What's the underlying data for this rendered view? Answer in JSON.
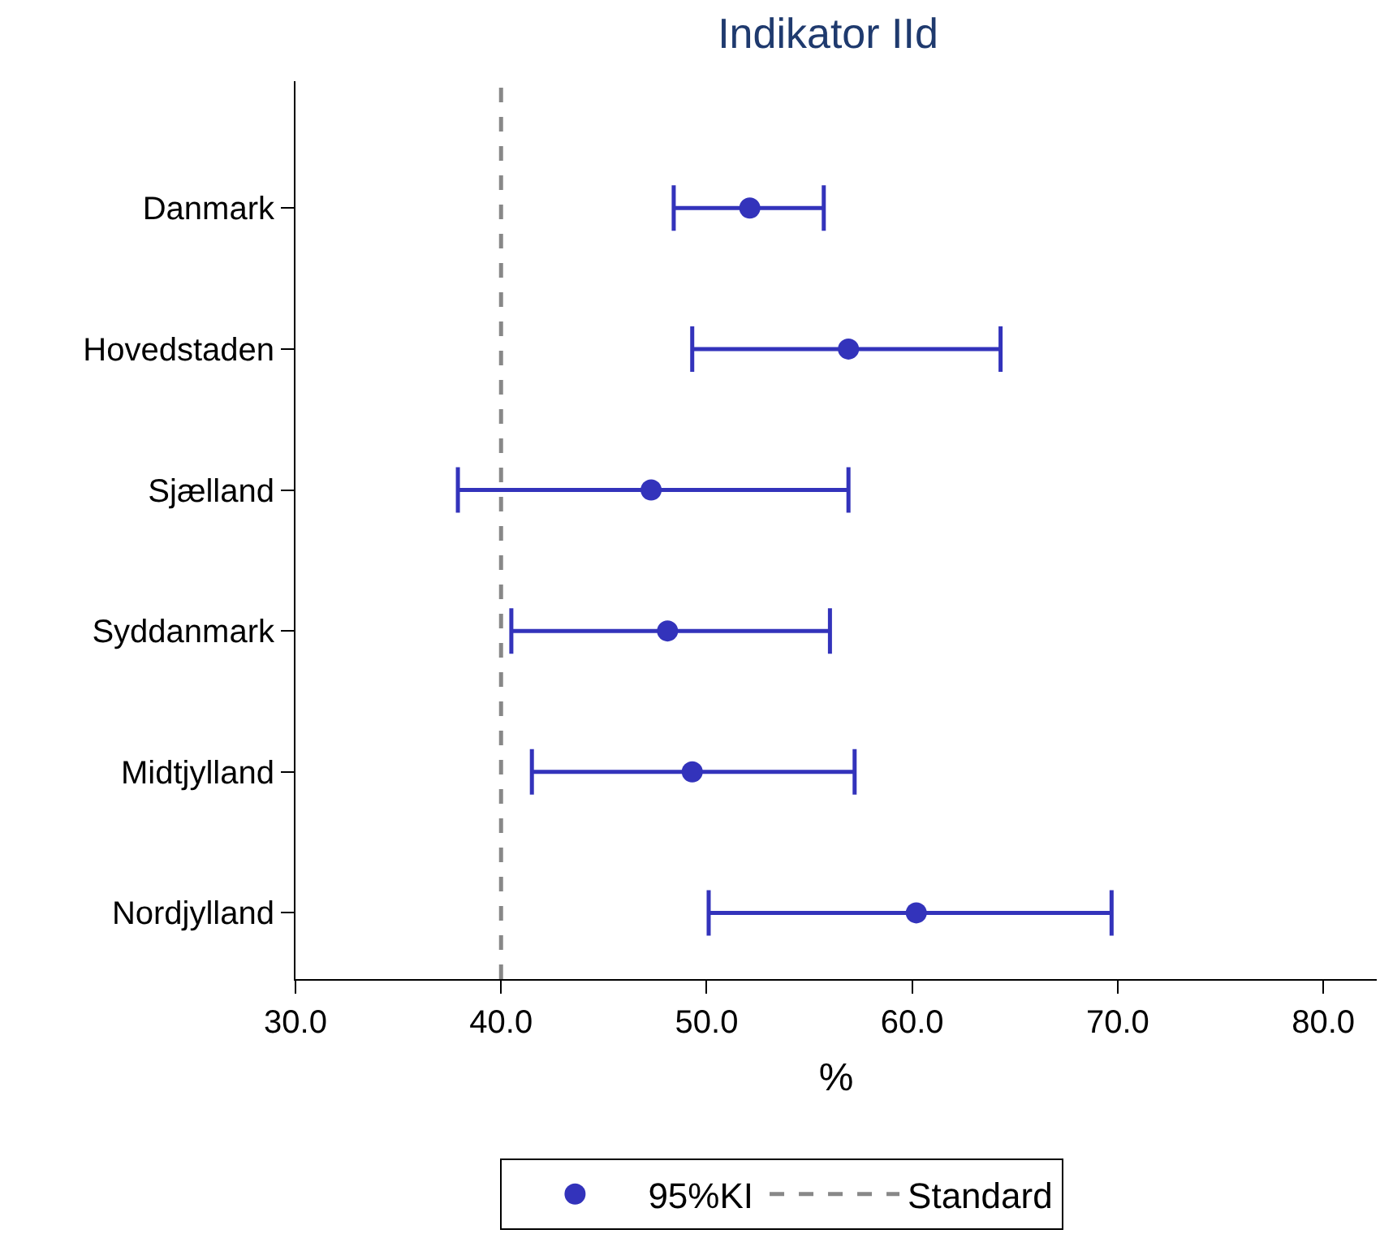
{
  "chart_data": {
    "type": "scatter",
    "title": "Indikator IId",
    "xlabel": "%",
    "categories": [
      "Danmark",
      "Hovedstaden",
      "Sjælland",
      "Syddanmark",
      "Midtjylland",
      "Nordjylland"
    ],
    "orientation": "horizontal",
    "series": [
      {
        "name": "95%KI",
        "color": "#3333bb",
        "values": [
          52.1,
          56.9,
          47.3,
          48.1,
          49.3,
          60.2
        ],
        "errors": [
          [
            48.4,
            55.7
          ],
          [
            49.3,
            64.3
          ],
          [
            37.9,
            56.9
          ],
          [
            40.5,
            56.0
          ],
          [
            41.5,
            57.2
          ],
          [
            50.1,
            69.7
          ]
        ]
      }
    ],
    "xlim": [
      30,
      82.6
    ],
    "xticks": [
      {
        "value": 30,
        "label": "30.0"
      },
      {
        "value": 40,
        "label": "40.0"
      },
      {
        "value": 50,
        "label": "50.0"
      },
      {
        "value": 60,
        "label": "60.0"
      },
      {
        "value": 70,
        "label": "70.0"
      },
      {
        "value": 80,
        "label": "80.0"
      }
    ],
    "ref_lines": [
      {
        "axis": "x",
        "value": 40,
        "label": "Standard",
        "color": "#888888",
        "line_style": "dashed"
      }
    ],
    "marker": "circle",
    "grid": false,
    "legend": "bottom"
  }
}
